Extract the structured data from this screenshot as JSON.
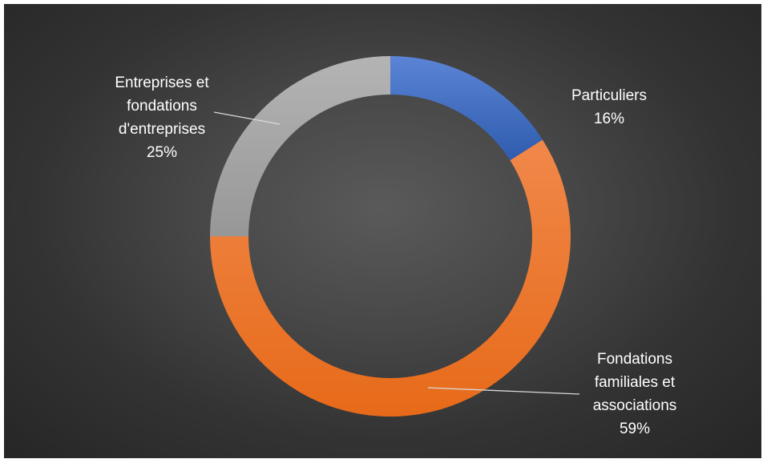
{
  "chart_data": {
    "type": "pie",
    "variant": "donut",
    "start_angle_deg": 0,
    "direction": "clockwise",
    "slices": [
      {
        "label_lines": [
          "Particuliers"
        ],
        "pct_label": "16%",
        "value": 16,
        "color": "#4472C4",
        "color_light": "#5b84d6",
        "color_dark": "#2f5cae"
      },
      {
        "label_lines": [
          "Fondations",
          "familiales et",
          "associations"
        ],
        "pct_label": "59%",
        "value": 59,
        "color": "#ED7D31",
        "color_light": "#f0884a",
        "color_dark": "#e76a19"
      },
      {
        "label_lines": [
          "Entreprises et",
          "fondations",
          "d'entreprises"
        ],
        "pct_label": "25%",
        "value": 25,
        "color": "#A5A5A5",
        "color_light": "#b4b4b4",
        "color_dark": "#979797"
      }
    ],
    "legend": "none",
    "background": "#404040"
  }
}
